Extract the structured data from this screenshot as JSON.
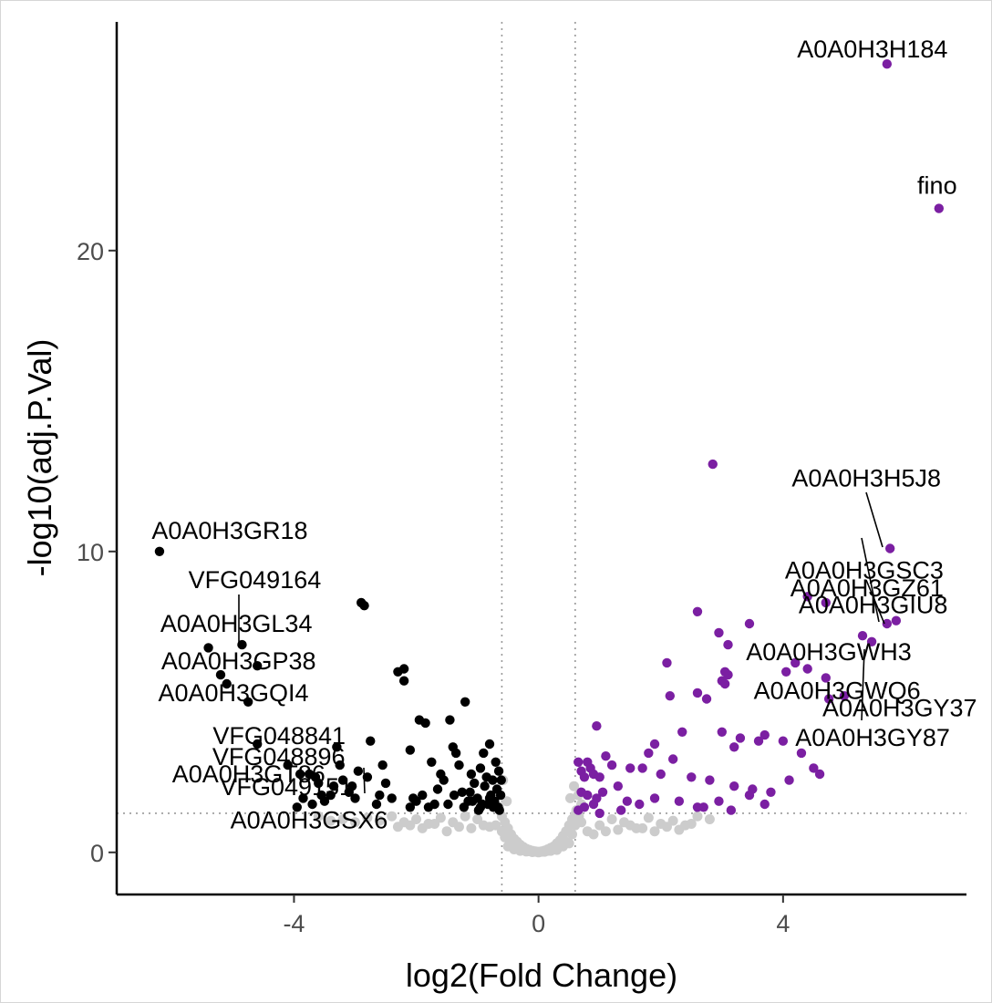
{
  "chart_data": {
    "type": "scatter",
    "title": "",
    "xlabel": "log2(Fold Change)",
    "ylabel": "-log10(adj.P.Val)",
    "xlim": [
      -6.9,
      7.0
    ],
    "ylim": [
      -1.4,
      27.6
    ],
    "xticks": [
      -4,
      0,
      4
    ],
    "yticks": [
      0,
      10,
      20
    ],
    "grid": false,
    "thresholds": {
      "fold_change": [
        -0.6,
        0.6
      ],
      "p_value_line": 1.3
    },
    "colors": {
      "up": "#7b1fa2",
      "down": "#000000",
      "ns": "#cccccc",
      "threshold_line": "#999999"
    },
    "series": [
      {
        "name": "up",
        "x": [
          5.7,
          6.55,
          2.85,
          5.75,
          4.4,
          4.7,
          5.7,
          5.85,
          2.6,
          2.95,
          3.45,
          3.1,
          3.1,
          3.05,
          4.2,
          4.4,
          5.3,
          5.45,
          4.05,
          4.7,
          2.1,
          3.0,
          3.05,
          2.15,
          2.6,
          2.75,
          4.75,
          5.0,
          0.95,
          2.35,
          3.0,
          3.2,
          1.9,
          3.6,
          1.1,
          1.8,
          2.2,
          4.0,
          3.3,
          3.7,
          4.3,
          4.5,
          4.6,
          0.8,
          1.2,
          1.5,
          1.7,
          2.0,
          2.5,
          2.8,
          3.2,
          3.5,
          3.8,
          4.1,
          0.65,
          0.7,
          0.75,
          0.85,
          0.9,
          1.0,
          0.7,
          0.8,
          0.95,
          1.05,
          1.3,
          1.45,
          1.65,
          2.7,
          2.95,
          3.15,
          3.45,
          3.7,
          0.65,
          0.75,
          0.9,
          1.0,
          1.35,
          1.9,
          2.3,
          2.6
        ],
        "y": [
          26.2,
          21.4,
          12.9,
          10.1,
          8.5,
          8.3,
          7.6,
          7.7,
          8.0,
          7.3,
          7.6,
          6.9,
          5.9,
          6.0,
          6.3,
          6.1,
          7.2,
          7.0,
          6.0,
          5.8,
          6.3,
          5.7,
          5.6,
          5.2,
          5.3,
          5.1,
          5.1,
          5.2,
          4.2,
          4.0,
          4.0,
          3.5,
          3.6,
          3.7,
          3.2,
          3.3,
          3.1,
          3.7,
          3.8,
          3.9,
          3.3,
          2.8,
          2.6,
          3.0,
          2.9,
          2.8,
          2.8,
          2.6,
          2.5,
          2.4,
          2.2,
          2.1,
          2.0,
          2.4,
          3.0,
          2.7,
          2.5,
          2.8,
          2.6,
          2.5,
          2.0,
          1.9,
          1.8,
          2.0,
          2.2,
          1.7,
          1.6,
          1.5,
          1.7,
          1.4,
          1.9,
          1.6,
          1.4,
          1.5,
          1.6,
          1.3,
          1.4,
          1.8,
          1.7,
          1.5
        ]
      },
      {
        "name": "down",
        "x": [
          -6.2,
          -4.85,
          -4.6,
          -5.4,
          -5.2,
          -5.1,
          -4.75,
          -4.6,
          -4.1,
          -3.9,
          -3.75,
          -3.65,
          -3.55,
          -3.5,
          -3.3,
          -3.25,
          -3.2,
          -2.9,
          -2.85,
          -2.75,
          -2.6,
          -2.55,
          -2.5,
          -2.3,
          -2.2,
          -2.2,
          -2.1,
          -2.05,
          -1.95,
          -1.85,
          -1.75,
          -1.6,
          -1.45,
          -1.4,
          -1.35,
          -1.3,
          -1.2,
          -1.1,
          -1.05,
          -0.95,
          -0.9,
          -0.85,
          -0.8,
          -0.75,
          -0.7,
          -0.68,
          -0.65,
          -0.62,
          -1.25,
          -1.15,
          -1.0,
          -0.92,
          -0.88,
          -0.78,
          -0.72,
          -0.66,
          -1.55,
          -1.65,
          -1.7,
          -1.8,
          -1.9,
          -2.0,
          -2.1,
          -2.4,
          -2.65,
          -2.8,
          -3.0,
          -3.1,
          -3.35,
          -3.4,
          -3.6,
          -3.7,
          -3.85,
          -3.95,
          -2.95,
          -3.05,
          -1.48,
          -1.38,
          -1.22,
          -1.08,
          -0.98,
          -0.83,
          -0.74,
          -0.64,
          -0.61,
          -1.12,
          -0.95,
          -0.8
        ],
        "y": [
          10.0,
          6.9,
          6.2,
          6.8,
          5.9,
          5.6,
          5.0,
          3.6,
          2.9,
          2.6,
          2.6,
          2.5,
          1.9,
          1.7,
          3.5,
          2.9,
          2.4,
          8.3,
          8.2,
          3.7,
          1.9,
          2.9,
          2.3,
          6.0,
          6.1,
          5.7,
          3.4,
          1.8,
          4.4,
          4.3,
          3.0,
          2.6,
          4.4,
          3.5,
          3.3,
          2.9,
          5.0,
          2.6,
          2.3,
          2.8,
          3.3,
          2.5,
          3.6,
          2.4,
          3.0,
          2.1,
          2.7,
          1.9,
          2.0,
          1.7,
          1.8,
          1.6,
          2.2,
          1.9,
          1.7,
          1.5,
          2.4,
          2.1,
          1.6,
          1.5,
          1.9,
          1.7,
          1.5,
          1.8,
          1.6,
          2.5,
          1.8,
          2.0,
          2.2,
          1.9,
          2.3,
          1.6,
          1.8,
          1.5,
          2.7,
          2.2,
          1.6,
          1.9,
          1.5,
          1.7,
          1.4,
          1.6,
          1.5,
          1.4,
          2.4,
          2.0,
          1.5,
          1.8
        ]
      },
      {
        "name": "ns",
        "x": [
          -0.6,
          -0.55,
          -0.5,
          -0.45,
          -0.4,
          -0.35,
          -0.3,
          -0.25,
          -0.2,
          -0.15,
          -0.1,
          -0.05,
          0.0,
          0.05,
          0.1,
          0.15,
          0.2,
          0.25,
          0.3,
          0.35,
          0.4,
          0.45,
          0.5,
          0.55,
          0.6,
          -0.55,
          -0.45,
          -0.35,
          -0.25,
          -0.15,
          -0.05,
          0.05,
          0.15,
          0.25,
          0.35,
          0.45,
          0.55,
          -0.5,
          -0.3,
          -0.1,
          0.1,
          0.3,
          0.5,
          -0.6,
          0.6,
          -0.4,
          0.4,
          -0.2,
          0.2,
          0.0,
          -0.58,
          0.58,
          -0.52,
          0.52,
          -1.0,
          -1.2,
          -1.4,
          -1.6,
          -1.8,
          -2.0,
          -2.2,
          -2.4,
          -2.6,
          -2.8,
          -3.0,
          -3.2,
          -3.4,
          -3.6,
          -0.9,
          -1.1,
          -1.3,
          -1.5,
          -1.7,
          -1.9,
          -2.1,
          -2.3,
          1.0,
          1.2,
          1.4,
          1.6,
          1.8,
          2.0,
          2.2,
          2.4,
          2.6,
          2.8,
          0.9,
          1.1,
          1.3,
          1.5,
          1.7,
          1.9,
          2.1,
          2.3,
          2.5,
          0.7,
          0.8,
          -0.7,
          -0.8,
          0.65,
          0.7,
          -0.65,
          0.62,
          0.66
        ],
        "y": [
          1.2,
          1.0,
          0.8,
          0.6,
          0.45,
          0.35,
          0.25,
          0.18,
          0.12,
          0.08,
          0.05,
          0.03,
          0.02,
          0.03,
          0.06,
          0.1,
          0.15,
          0.2,
          0.3,
          0.4,
          0.55,
          0.7,
          0.9,
          1.1,
          1.25,
          0.5,
          0.3,
          0.15,
          0.08,
          0.04,
          0.02,
          0.02,
          0.05,
          0.1,
          0.2,
          0.35,
          0.6,
          0.2,
          0.05,
          0.01,
          0.02,
          0.08,
          0.3,
          0.7,
          0.9,
          0.1,
          0.2,
          0.03,
          0.05,
          0.0,
          2.4,
          2.2,
          1.7,
          1.8,
          1.1,
          1.2,
          1.0,
          1.15,
          0.95,
          1.1,
          1.0,
          1.2,
          1.05,
          1.15,
          1.0,
          1.1,
          1.05,
          1.2,
          0.9,
          0.8,
          0.85,
          0.7,
          0.95,
          0.8,
          0.9,
          0.85,
          0.9,
          1.1,
          1.0,
          0.8,
          1.15,
          0.95,
          1.05,
          0.9,
          1.2,
          1.1,
          0.6,
          0.7,
          0.75,
          0.9,
          0.8,
          0.7,
          0.85,
          0.75,
          0.95,
          1.0,
          0.7,
          0.9,
          0.85,
          1.9,
          1.6,
          1.5,
          1.4,
          1.2
        ]
      }
    ],
    "annotations": [
      {
        "text": "A0A0H3H184",
        "x": 5.7,
        "y": 26.2
      },
      {
        "text": "fino",
        "x": 6.55,
        "y": 21.4
      },
      {
        "text": "A0A0H3H5J8",
        "x": 5.75,
        "y": 10.1
      },
      {
        "text": "A0A0H3GZ61",
        "x": 5.7,
        "y": 7.6
      },
      {
        "text": "A0A0H3GSC3",
        "x": 5.85,
        "y": 7.7
      },
      {
        "text": "A0A0H3GIU8",
        "x": 4.4,
        "y": 8.5
      },
      {
        "text": "A0A0H3GWH3",
        "x": 5.3,
        "y": 7.2
      },
      {
        "text": "A0A0H3GY37",
        "x": 4.7,
        "y": 6.1
      },
      {
        "text": "A0A0H3GWQ6",
        "x": 4.75,
        "y": 5.1
      },
      {
        "text": "A0A0H3GY87",
        "x": 5.45,
        "y": 7.0
      },
      {
        "text": "A0A0H3GR18",
        "x": -6.2,
        "y": 10.0
      },
      {
        "text": "VFG049164",
        "x": -4.85,
        "y": 6.9
      },
      {
        "text": "A0A0H3GL34",
        "x": -4.75,
        "y": 5.0
      },
      {
        "text": "A0A0H3GP38",
        "x": -5.1,
        "y": 5.6
      },
      {
        "text": "A0A0H3GQI4",
        "x": -5.2,
        "y": 5.9
      },
      {
        "text": "VFG048841",
        "x": -4.6,
        "y": 3.6
      },
      {
        "text": "A0A0H3GT86",
        "x": -4.1,
        "y": 2.9
      },
      {
        "text": "VFG048896",
        "x": -3.25,
        "y": 2.9
      },
      {
        "text": "VFG049151",
        "x": -2.75,
        "y": 2.3
      },
      {
        "text": "A0A0H3GSX6",
        "x": -3.5,
        "y": 1.7
      }
    ]
  }
}
